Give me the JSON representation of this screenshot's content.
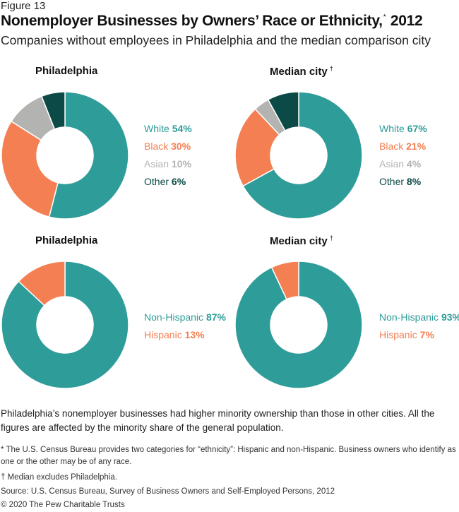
{
  "figure_label": "Figure 13",
  "title_main": "Nonemployer Businesses by Owners’ Race or Ethnicity,",
  "title_mark": "*",
  "title_year": "2012",
  "subtitle": "Companies without employees in Philadelphia and the median comparison city",
  "colors": {
    "White": "#2e9c98",
    "Black": "#f47f52",
    "Asian": "#b3b3b1",
    "Other": "#0b4a46",
    "Non-Hispanic": "#2e9c98",
    "Hispanic": "#f47f52"
  },
  "chart_data": [
    {
      "type": "pie",
      "title": "Philadelphia",
      "title_mark": "",
      "categories": [
        "White",
        "Black",
        "Asian",
        "Other"
      ],
      "values": [
        54,
        30,
        10,
        6
      ],
      "value_labels": [
        "54%",
        "30%",
        "10%",
        "6%"
      ]
    },
    {
      "type": "pie",
      "title": "Median city",
      "title_mark": "†",
      "categories": [
        "White",
        "Black",
        "Asian",
        "Other"
      ],
      "values": [
        67,
        21,
        4,
        8
      ],
      "value_labels": [
        "67%",
        "21%",
        "4%",
        "8%"
      ]
    },
    {
      "type": "pie",
      "title": "Philadelphia",
      "title_mark": "",
      "categories": [
        "Non-Hispanic",
        "Hispanic"
      ],
      "values": [
        87,
        13
      ],
      "value_labels": [
        "87%",
        "13%"
      ]
    },
    {
      "type": "pie",
      "title": "Median city",
      "title_mark": "†",
      "categories": [
        "Non-Hispanic",
        "Hispanic"
      ],
      "values": [
        93,
        7
      ],
      "value_labels": [
        "93%",
        "7%"
      ]
    }
  ],
  "caption": "Philadelphia’s nonemployer businesses had higher minority ownership than those in other cities. All the figures are affected by the minority share of the general population.",
  "notes": {
    "ethnicity": "* The U.S. Census Bureau provides two categories for “ethnicity”: Hispanic and non-Hispanic. Business owners who identify as one or the other may be of any race.",
    "median": "† Median excludes Philadelphia.",
    "source": "Source: U.S. Census Bureau, Survey of Business Owners and Self-Employed Persons, 2012",
    "copyright": "© 2020 The Pew Charitable Trusts"
  }
}
